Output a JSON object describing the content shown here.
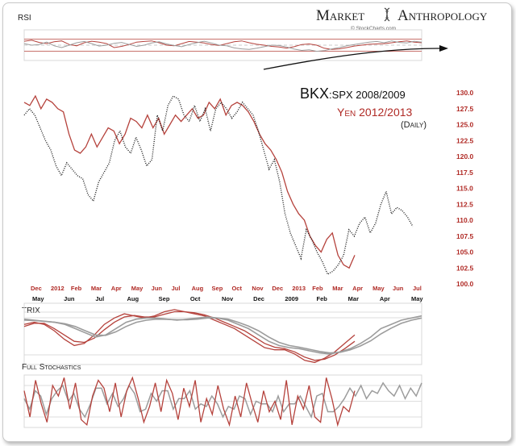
{
  "brand": {
    "title": "Market",
    "title2": "Anthropology",
    "credit": "© StockCharts.com"
  },
  "legend": {
    "bkx_a": "BKX",
    "bkx_b": ":SPX 2008/2009",
    "yen": "Yen 2012/2013",
    "freq": "(Daily)"
  },
  "colors": {
    "bkx": "#1a1a1a",
    "yen": "#b5423c",
    "red_axis": "#b02a25",
    "gray": "#9c9c9c",
    "grid": "#d3d3d3"
  },
  "chart_data": [
    {
      "panel": "rsi",
      "type": "line",
      "title": "RSI",
      "levels": [
        70,
        50,
        30
      ],
      "ylim": [
        0,
        100
      ],
      "series": [
        {
          "color": "red",
          "values": [
            63,
            66,
            59,
            55,
            61,
            64,
            52,
            48,
            58,
            63,
            60,
            55,
            42,
            46,
            52,
            60,
            62,
            64,
            58,
            50,
            48,
            55,
            62,
            60,
            57,
            52,
            49,
            55,
            61,
            64,
            58,
            53,
            50,
            46,
            44,
            40,
            45,
            52,
            54,
            50,
            40,
            36,
            38,
            42,
            47,
            50,
            53,
            54,
            55,
            58,
            61,
            64,
            60,
            58
          ]
        },
        {
          "color": "gray",
          "values": [
            55,
            50,
            52,
            60,
            48,
            42,
            50,
            58,
            62,
            55,
            47,
            50,
            56,
            59,
            52,
            46,
            50,
            57,
            61,
            54,
            49,
            45,
            52,
            58,
            63,
            57,
            50,
            48,
            41,
            38,
            36,
            40,
            45,
            50,
            49,
            44,
            37,
            33,
            35,
            30,
            32,
            38,
            42,
            48,
            52,
            56,
            60,
            62,
            58,
            64,
            59,
            57,
            63,
            60
          ]
        }
      ]
    },
    {
      "panel": "price",
      "type": "line",
      "title": "BKX:SPX 2008/2009 | Yen 2012/2013 (Daily)",
      "ylim": [
        99.5,
        131.0
      ],
      "yticks": [
        "130.0",
        "127.5",
        "125.0",
        "122.5",
        "120.0",
        "117.5",
        "115.0",
        "112.5",
        "110.0",
        "107.5",
        "105.0",
        "102.5",
        "100.0"
      ],
      "xticks_top": [
        "Dec",
        "2012",
        "Feb",
        "Mar",
        "Apr",
        "May",
        "Jun",
        "Jul",
        "Aug",
        "Sep",
        "Oct",
        "Nov",
        "Dec",
        "2013",
        "Feb",
        "Mar",
        "Apr",
        "May",
        "Jun",
        "Jul"
      ],
      "xticks_bottom": [
        "May",
        "Jun",
        "Jul",
        "Aug",
        "Sep",
        "Oct",
        "Nov",
        "Dec",
        "2009",
        "Feb",
        "Mar",
        "Apr",
        "May"
      ],
      "series": [
        {
          "name": "BKX:SPX 2008/2009",
          "color": "black",
          "style": "dotted",
          "values": [
            126.5,
            127.5,
            126.5,
            124.5,
            122.5,
            121.0,
            118.5,
            117.0,
            119.0,
            118.0,
            117.0,
            116.5,
            114.0,
            113.0,
            116.0,
            117.5,
            119.0,
            122.5,
            124.0,
            121.5,
            120.5,
            123.0,
            121.0,
            118.5,
            119.5,
            126.5,
            124.0,
            128.0,
            129.5,
            129.0,
            126.5,
            125.5,
            128.0,
            125.5,
            127.5,
            124.0,
            127.5,
            128.5,
            127.5,
            126.0,
            127.0,
            128.5,
            127.5,
            126.5,
            124.0,
            121.0,
            118.0,
            119.5,
            116.0,
            111.0,
            108.0,
            106.0,
            104.0,
            108.5,
            107.0,
            105.0,
            103.5,
            101.5,
            102.0,
            103.0,
            104.5,
            108.5,
            107.5,
            109.5,
            110.5,
            108.0,
            109.5,
            112.5,
            114.5,
            111.0,
            112.0,
            111.5,
            110.5,
            109.0
          ]
        },
        {
          "name": "Yen 2012/2013",
          "color": "red",
          "style": "solid",
          "values": [
            128.5,
            128.0,
            129.5,
            127.5,
            129.0,
            128.5,
            127.5,
            127.0,
            123.5,
            121.0,
            120.5,
            121.5,
            123.5,
            121.5,
            123.0,
            124.5,
            124.0,
            122.0,
            123.5,
            126.0,
            125.5,
            124.5,
            126.5,
            124.5,
            126.0,
            123.5,
            125.0,
            126.5,
            125.5,
            126.5,
            127.5,
            126.0,
            126.5,
            128.5,
            127.5,
            129.0,
            126.5,
            128.0,
            128.5,
            128.0,
            127.0,
            125.5,
            123.5,
            122.0,
            121.0,
            119.5,
            117.5,
            114.5,
            112.5,
            111.0,
            110.0,
            107.5,
            106.0,
            105.0,
            107.0,
            108.0,
            104.5,
            103.0,
            102.5,
            104.5
          ]
        }
      ]
    },
    {
      "panel": "trix",
      "type": "line",
      "title": "TRIX",
      "series": [
        {
          "color": "red",
          "values": [
            0.3,
            0.4,
            0.3,
            0.0,
            -0.4,
            -0.7,
            -0.6,
            -0.2,
            0.3,
            0.6,
            0.8,
            0.7,
            0.6,
            0.7,
            0.9,
            1.0,
            0.9,
            0.8,
            0.7,
            0.5,
            0.3,
            0.1,
            -0.2,
            -0.5,
            -0.8,
            -0.9,
            -0.9,
            -1.1,
            -1.4,
            -1.5,
            -1.3,
            -1.0,
            -0.6,
            -0.2
          ]
        },
        {
          "color": "red",
          "values": [
            0.2,
            0.35,
            0.35,
            0.1,
            -0.2,
            -0.5,
            -0.55,
            -0.35,
            0.05,
            0.4,
            0.65,
            0.72,
            0.65,
            0.65,
            0.78,
            0.9,
            0.9,
            0.85,
            0.75,
            0.6,
            0.4,
            0.2,
            0.0,
            -0.3,
            -0.6,
            -0.78,
            -0.85,
            -1.0,
            -1.25,
            -1.4,
            -1.35,
            -1.15,
            -0.85,
            -0.5
          ]
        },
        {
          "color": "gray",
          "values": [
            0.55,
            0.5,
            0.45,
            0.4,
            0.3,
            0.1,
            -0.1,
            -0.3,
            -0.2,
            0.1,
            0.4,
            0.55,
            0.6,
            0.6,
            0.55,
            0.5,
            0.55,
            0.6,
            0.65,
            0.6,
            0.5,
            0.3,
            0.1,
            -0.2,
            -0.5,
            -0.7,
            -0.8,
            -0.85,
            -0.95,
            -1.05,
            -1.1,
            -1.0,
            -0.85,
            -0.6,
            -0.3,
            0.1,
            0.3,
            0.5,
            0.6,
            0.7
          ]
        },
        {
          "color": "gray",
          "values": [
            0.5,
            0.48,
            0.44,
            0.4,
            0.33,
            0.2,
            0.0,
            -0.2,
            -0.22,
            -0.05,
            0.2,
            0.4,
            0.5,
            0.55,
            0.54,
            0.52,
            0.52,
            0.55,
            0.6,
            0.6,
            0.55,
            0.4,
            0.22,
            0.0,
            -0.3,
            -0.55,
            -0.7,
            -0.78,
            -0.88,
            -0.98,
            -1.05,
            -1.02,
            -0.9,
            -0.72,
            -0.48,
            -0.15,
            0.12,
            0.35,
            0.5,
            0.6
          ]
        }
      ]
    },
    {
      "panel": "stochastics",
      "type": "line",
      "title": "Full Stochastics",
      "levels": [
        80,
        50,
        20
      ],
      "ylim": [
        0,
        100
      ],
      "series": [
        {
          "color": "red",
          "values": [
            70,
            20,
            90,
            45,
            10,
            80,
            60,
            95,
            35,
            85,
            15,
            5,
            60,
            90,
            75,
            30,
            85,
            20,
            70,
            95,
            55,
            10,
            40,
            85,
            30,
            90,
            65,
            15,
            75,
            40,
            90,
            10,
            55,
            25,
            80,
            35,
            5,
            60,
            20,
            85,
            45,
            10,
            70,
            30,
            50,
            15,
            90,
            5,
            60,
            35,
            80,
            20,
            10,
            95,
            55,
            5,
            40,
            30,
            70
          ]
        },
        {
          "color": "gray",
          "values": [
            55,
            35,
            70,
            60,
            25,
            55,
            70,
            80,
            50,
            65,
            35,
            20,
            45,
            75,
            75,
            45,
            65,
            40,
            55,
            80,
            65,
            30,
            35,
            65,
            50,
            70,
            70,
            35,
            55,
            55,
            70,
            35,
            45,
            40,
            60,
            45,
            20,
            40,
            35,
            60,
            55,
            25,
            50,
            45,
            45,
            30,
            60,
            30,
            45,
            45,
            60,
            40,
            20,
            60,
            65,
            30,
            30,
            40,
            55,
            75,
            60,
            80,
            55,
            70,
            65,
            85,
            70,
            60,
            80,
            55,
            75,
            60,
            85
          ]
        }
      ]
    }
  ]
}
